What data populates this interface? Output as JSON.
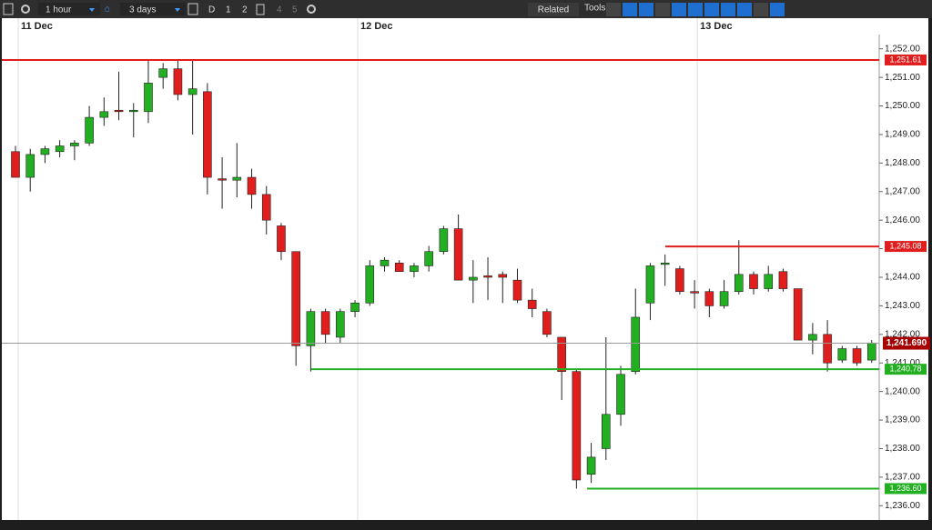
{
  "toolbar": {
    "interval": "1 hour",
    "range": "3 days",
    "buttons": [
      "D",
      "1",
      "2",
      "4",
      "5"
    ],
    "related": "Related",
    "tools": "Tools"
  },
  "chart_data": {
    "type": "candlestick",
    "categories": [
      "11 Dec",
      null,
      null,
      null,
      null,
      null,
      null,
      null,
      null,
      null,
      null,
      null,
      null,
      null,
      null,
      null,
      null,
      null,
      null,
      null,
      null,
      null,
      null,
      "12 Dec",
      null,
      null,
      null,
      null,
      null,
      null,
      null,
      null,
      null,
      null,
      null,
      null,
      null,
      null,
      null,
      null,
      null,
      null,
      null,
      null,
      null,
      null,
      "13 Dec",
      null,
      null,
      null,
      null,
      null,
      null,
      null,
      null,
      null,
      null,
      null,
      null
    ],
    "series": [
      {
        "up_color": "#22b022",
        "down_color": "#e01e1e",
        "open": [
          1248.4,
          1247.5,
          1248.3,
          1248.4,
          1248.6,
          1248.7,
          1249.6,
          1249.85,
          1249.8,
          1249.8,
          1251.0,
          1251.3,
          1250.4,
          1250.5,
          1247.45,
          1247.4,
          1247.5,
          1246.9,
          1245.8,
          1244.9,
          1241.6,
          1242.8,
          1241.9,
          1242.8,
          1243.1,
          1244.4,
          1244.5,
          1244.2,
          1244.4,
          1244.9,
          1245.7,
          1243.9,
          1244.05,
          1244.1,
          1243.9,
          1243.2,
          1242.8,
          1241.9,
          1240.7,
          1237.1,
          1238.0,
          1239.2,
          1240.7,
          1243.1,
          1244.45,
          1244.3,
          1243.5,
          1243.5,
          1243.0,
          1243.5,
          1244.1,
          1243.6,
          1244.2,
          1243.6,
          1241.8,
          1242.0,
          1241.1,
          1241.5,
          1241.1
        ],
        "high": [
          1248.6,
          1248.5,
          1248.6,
          1248.8,
          1248.8,
          1250.0,
          1250.3,
          1251.2,
          1250.1,
          1251.6,
          1251.5,
          1251.6,
          1251.6,
          1250.8,
          1248.2,
          1248.7,
          1247.8,
          1247.2,
          1245.9,
          1244.9,
          1242.9,
          1242.9,
          1242.9,
          1243.2,
          1244.6,
          1244.7,
          1244.6,
          1244.5,
          1245.1,
          1245.8,
          1246.2,
          1244.6,
          1244.7,
          1244.2,
          1244.3,
          1243.6,
          1242.9,
          1241.9,
          1240.8,
          1238.2,
          1241.9,
          1240.9,
          1243.6,
          1244.5,
          1244.8,
          1244.4,
          1243.9,
          1243.6,
          1243.9,
          1245.3,
          1244.2,
          1244.4,
          1244.3,
          1243.6,
          1242.4,
          1242.5,
          1241.6,
          1241.6,
          1241.8
        ],
        "low": [
          1247.5,
          1247.0,
          1248.0,
          1248.2,
          1248.1,
          1248.6,
          1249.3,
          1249.5,
          1248.9,
          1249.4,
          1250.6,
          1250.2,
          1249.0,
          1246.9,
          1246.4,
          1246.8,
          1246.4,
          1245.5,
          1244.6,
          1240.9,
          1240.7,
          1241.7,
          1241.7,
          1242.6,
          1243.0,
          1244.2,
          1244.2,
          1244.0,
          1244.2,
          1244.8,
          1243.9,
          1243.1,
          1243.2,
          1243.1,
          1243.1,
          1242.6,
          1241.9,
          1239.7,
          1236.6,
          1236.8,
          1237.6,
          1238.8,
          1240.6,
          1242.5,
          1243.7,
          1243.4,
          1242.9,
          1242.6,
          1242.9,
          1243.4,
          1243.4,
          1243.5,
          1243.5,
          1241.8,
          1241.3,
          1240.7,
          1241.0,
          1240.9,
          1241.0
        ],
        "close": [
          1247.5,
          1248.3,
          1248.5,
          1248.6,
          1248.7,
          1249.6,
          1249.8,
          1249.8,
          1249.85,
          1250.8,
          1251.3,
          1250.4,
          1250.6,
          1247.5,
          1247.4,
          1247.5,
          1246.9,
          1246.0,
          1244.9,
          1241.6,
          1242.8,
          1242.0,
          1242.8,
          1243.1,
          1244.4,
          1244.6,
          1244.2,
          1244.4,
          1244.9,
          1245.7,
          1243.9,
          1244.0,
          1244.0,
          1244.0,
          1243.2,
          1242.9,
          1242.0,
          1240.7,
          1236.9,
          1237.7,
          1239.2,
          1240.6,
          1242.6,
          1244.4,
          1244.5,
          1243.5,
          1243.45,
          1243.0,
          1243.5,
          1244.1,
          1243.6,
          1244.1,
          1243.6,
          1241.8,
          1242.0,
          1241.0,
          1241.5,
          1241.0,
          1241.7
        ]
      }
    ],
    "ylim": [
      1235.5,
      1252.5
    ],
    "yticks": [
      {
        "value": 1236,
        "label": "1,236.00"
      },
      {
        "value": 1237,
        "label": "1,237.00"
      },
      {
        "value": 1238,
        "label": "1,238.00"
      },
      {
        "value": 1239,
        "label": "1,239.00"
      },
      {
        "value": 1240,
        "label": "1,240.00"
      },
      {
        "value": 1241,
        "label": "1,241.00"
      },
      {
        "value": 1242,
        "label": "1,242.00"
      },
      {
        "value": 1243,
        "label": "1,243.00"
      },
      {
        "value": 1244,
        "label": "1,244.00"
      },
      {
        "value": 1245,
        "label": "1,245.00"
      },
      {
        "value": 1246,
        "label": "1,246.00"
      },
      {
        "value": 1247,
        "label": "1,247.00"
      },
      {
        "value": 1248,
        "label": "1,248.00"
      },
      {
        "value": 1249,
        "label": "1,249.00"
      },
      {
        "value": 1250,
        "label": "1,250.00"
      },
      {
        "value": 1251,
        "label": "1,251.00"
      },
      {
        "value": 1252,
        "label": "1,252.00"
      }
    ],
    "levels": [
      {
        "value": 1251.61,
        "label": "1,251.61",
        "color": "#e01e1e"
      },
      {
        "value": 1245.08,
        "label": "1,245.08",
        "color": "#e01e1e"
      },
      {
        "value": 1240.78,
        "label": "1,240.78",
        "color": "#22b022"
      },
      {
        "value": 1236.6,
        "label": "1,236.60",
        "color": "#22b022"
      }
    ],
    "current": {
      "value": 1241.69,
      "label": "1,241.690",
      "color": "#a80000"
    }
  }
}
